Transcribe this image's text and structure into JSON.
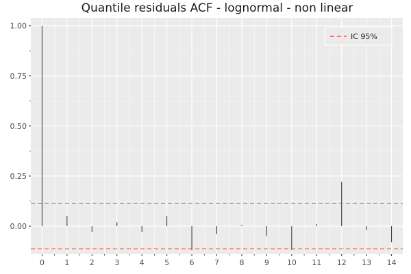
{
  "chart_data": {
    "type": "bar",
    "title": "Quantile residuals ACF - lognormal - non linear",
    "xlabel": "",
    "ylabel": "",
    "x": [
      0,
      1,
      2,
      3,
      4,
      5,
      6,
      7,
      8,
      9,
      10,
      11,
      12,
      13,
      14
    ],
    "values": [
      1.0,
      0.05,
      -0.03,
      0.02,
      -0.03,
      0.05,
      -0.12,
      -0.04,
      0.005,
      -0.05,
      -0.12,
      0.01,
      0.22,
      -0.02,
      -0.08
    ],
    "confidence_band": {
      "name": "IC 95%",
      "upper": 0.113,
      "lower": -0.113,
      "color": "#e8413c",
      "style": "dashed"
    },
    "ylim": [
      -0.14,
      1.04
    ],
    "xlim": [
      -0.45,
      14.45
    ],
    "y_ticks": [
      0.0,
      0.25,
      0.5,
      0.75,
      1.0
    ],
    "y_tick_labels": [
      "0.00",
      "0.25",
      "0.50",
      "0.75",
      "1.00"
    ],
    "x_ticks": [
      0,
      1,
      2,
      3,
      4,
      5,
      6,
      7,
      8,
      9,
      10,
      11,
      12,
      13,
      14
    ],
    "x_tick_labels": [
      "0",
      "1",
      "2",
      "3",
      "4",
      "5",
      "6",
      "7",
      "8",
      "9",
      "10",
      "11",
      "12",
      "13",
      "14"
    ],
    "legend": {
      "position": "top-right",
      "entries": [
        "IC 95%"
      ]
    },
    "grid": true,
    "colors": {
      "panel": "#ebebeb",
      "grid": "#ffffff",
      "bar": "#2b2b2b",
      "band": "#e8413c"
    }
  }
}
